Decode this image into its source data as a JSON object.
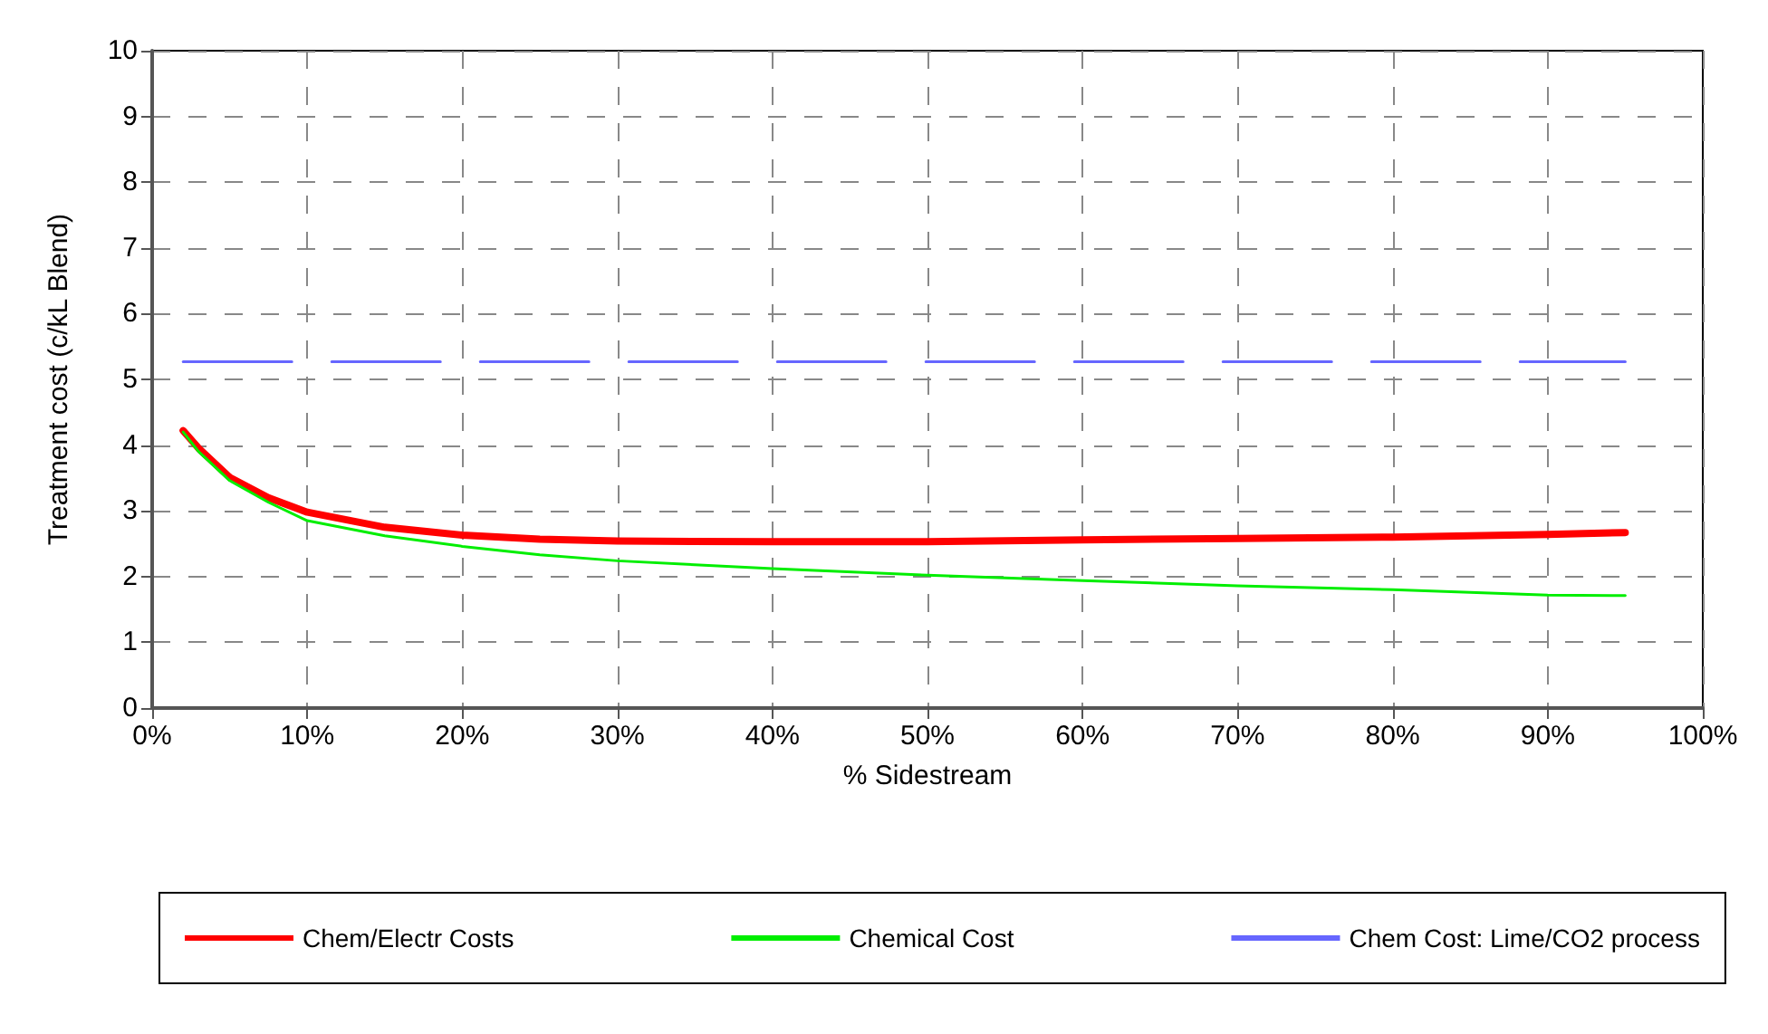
{
  "chart_data": {
    "type": "line",
    "xlabel": "% Sidestream",
    "ylabel": "Treatment cost (c/kL Blend)",
    "x": [
      2,
      3,
      5,
      7.5,
      10,
      15,
      20,
      25,
      30,
      40,
      50,
      60,
      70,
      80,
      90,
      95
    ],
    "xlim": [
      0,
      100
    ],
    "xticks": [
      {
        "value": 0,
        "label": "0%"
      },
      {
        "value": 10,
        "label": "10%"
      },
      {
        "value": 20,
        "label": "20%"
      },
      {
        "value": 30,
        "label": "30%"
      },
      {
        "value": 40,
        "label": "40%"
      },
      {
        "value": 50,
        "label": "50%"
      },
      {
        "value": 60,
        "label": "60%"
      },
      {
        "value": 70,
        "label": "70%"
      },
      {
        "value": 80,
        "label": "80%"
      },
      {
        "value": 90,
        "label": "90%"
      },
      {
        "value": 100,
        "label": "100%"
      }
    ],
    "ylim": [
      0,
      10
    ],
    "yticks": [
      0,
      1,
      2,
      3,
      4,
      5,
      6,
      7,
      8,
      9,
      10
    ],
    "series": [
      {
        "name": "Chem/Electr Costs",
        "color": "#ff0000",
        "values": [
          4.22,
          3.95,
          3.51,
          3.2,
          2.98,
          2.75,
          2.63,
          2.57,
          2.54,
          2.53,
          2.53,
          2.56,
          2.58,
          2.6,
          2.64,
          2.67
        ]
      },
      {
        "name": "Chemical Cost",
        "color": "#00ee00",
        "values": [
          4.2,
          3.9,
          3.46,
          3.13,
          2.85,
          2.62,
          2.46,
          2.33,
          2.24,
          2.12,
          2.02,
          1.94,
          1.86,
          1.8,
          1.72,
          1.71
        ]
      },
      {
        "name": "Chem Cost: Lime/CO2 process",
        "color": "#6666ff",
        "line_style": "dashed",
        "x": [
          2,
          95
        ],
        "values": [
          5.27,
          5.27
        ]
      }
    ],
    "grid": true,
    "line_style": "solid",
    "marker": "none",
    "legend": "bottom"
  }
}
